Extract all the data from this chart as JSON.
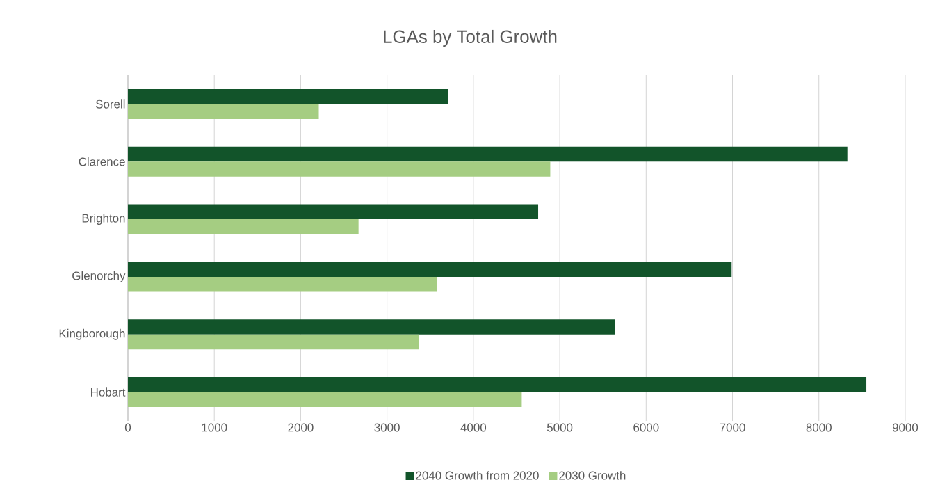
{
  "chart_data": {
    "type": "bar",
    "orientation": "horizontal",
    "title": "LGAs by Total Growth",
    "categories": [
      "Sorell",
      "Clarence",
      "Brighton",
      "Glenorchy",
      "Kingborough",
      "Hobart"
    ],
    "series": [
      {
        "name": "2040 Growth from 2020",
        "color": "#12542a",
        "values": [
          3710,
          8330,
          4750,
          6990,
          5640,
          8550
        ]
      },
      {
        "name": "2030 Growth",
        "color": "#a5cd82",
        "values": [
          2210,
          4890,
          2670,
          3580,
          3370,
          4560
        ]
      }
    ],
    "xlim": [
      0,
      9000
    ],
    "xticks": [
      0,
      1000,
      2000,
      3000,
      4000,
      5000,
      6000,
      7000,
      8000,
      9000
    ],
    "grid": "x",
    "legend": "bottom"
  }
}
